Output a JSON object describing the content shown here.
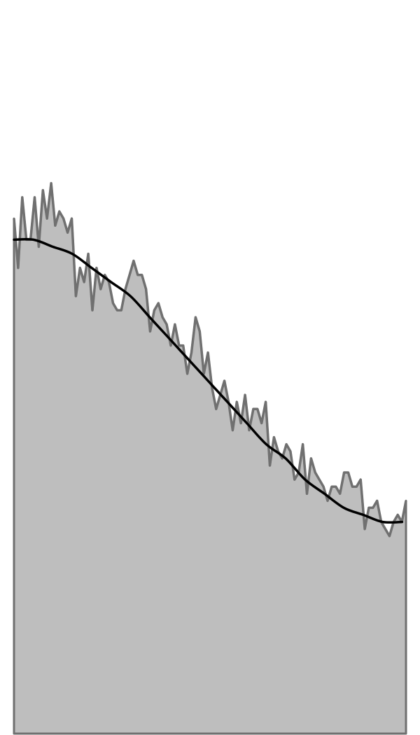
{
  "chart_data": {
    "type": "area",
    "title": "",
    "xlabel": "",
    "ylabel": "",
    "grid": false,
    "legend": "none",
    "xlim": [
      0,
      1
    ],
    "ylim": [
      0,
      1
    ],
    "colors": {
      "fill": "#bebebe",
      "noisy_line": "#707070",
      "trend_line": "#000000",
      "background": "#ffffff"
    },
    "series": [
      {
        "role": "noisy",
        "values": [
          0.73,
          0.66,
          0.76,
          0.7,
          0.7,
          0.76,
          0.69,
          0.77,
          0.73,
          0.78,
          0.72,
          0.74,
          0.73,
          0.71,
          0.73,
          0.62,
          0.66,
          0.64,
          0.68,
          0.6,
          0.66,
          0.63,
          0.65,
          0.64,
          0.61,
          0.6,
          0.6,
          0.63,
          0.65,
          0.67,
          0.65,
          0.65,
          0.63,
          0.57,
          0.6,
          0.61,
          0.59,
          0.58,
          0.55,
          0.58,
          0.55,
          0.55,
          0.51,
          0.54,
          0.59,
          0.57,
          0.51,
          0.54,
          0.49,
          0.46,
          0.48,
          0.5,
          0.47,
          0.43,
          0.47,
          0.44,
          0.48,
          0.43,
          0.46,
          0.46,
          0.44,
          0.47,
          0.38,
          0.42,
          0.4,
          0.39,
          0.41,
          0.4,
          0.36,
          0.37,
          0.41,
          0.34,
          0.39,
          0.37,
          0.36,
          0.35,
          0.33,
          0.35,
          0.35,
          0.34,
          0.37,
          0.37,
          0.35,
          0.35,
          0.36,
          0.29,
          0.32,
          0.32,
          0.33,
          0.3,
          0.29,
          0.28,
          0.3,
          0.31,
          0.3,
          0.33
        ],
        "x_start": 0,
        "x_end": 1
      },
      {
        "role": "trend",
        "values": [
          0.7,
          0.7,
          0.69,
          0.68,
          0.66,
          0.64,
          0.62,
          0.59,
          0.56,
          0.53,
          0.5,
          0.47,
          0.44,
          0.41,
          0.39,
          0.36,
          0.34,
          0.32,
          0.31,
          0.3,
          0.3
        ],
        "x_start": 0,
        "x_end": 0.99
      }
    ]
  }
}
